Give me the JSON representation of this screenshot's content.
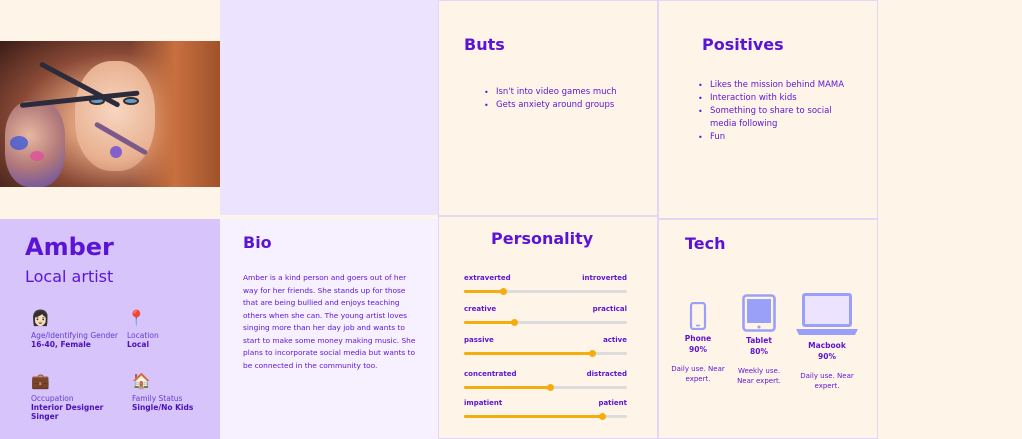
{
  "persona": {
    "name": "Amber",
    "role": "Local artist",
    "facts": [
      {
        "icon": "woman-emoji-icon",
        "emoji": "👩🏻",
        "label": "Age/Identifying Gender",
        "value": "16-40, Female"
      },
      {
        "icon": "pin-icon",
        "emoji": "📍",
        "label": "Location",
        "value": "Local"
      },
      {
        "icon": "briefcase-icon",
        "emoji": "💼",
        "label": "Occupation",
        "value": "Interior Designer",
        "value2": "Singer"
      },
      {
        "icon": "house-icon",
        "emoji": "🏠",
        "label": "Family Status",
        "value": "Single/No Kids"
      }
    ]
  },
  "bio": {
    "title": "Bio",
    "text": "Amber is a kind person and goers out of her way for her friends. She stands up for those that are being bullied and enjoys teaching others when she can. The young artist loves singing more than her day job and wants to start to make some money making music. She plans to incorporate social media but wants to be connected in the community too."
  },
  "buts": {
    "title": "Buts",
    "items": [
      "Isn't into video games much",
      "Gets anxiety around groups"
    ]
  },
  "positives": {
    "title": "Positives",
    "items": [
      "Likes the mission behind MAMA",
      "Interaction with kids",
      "Something to share to social media following",
      "Fun"
    ]
  },
  "personality": {
    "title": "Personality",
    "traits": [
      {
        "left": "extraverted",
        "right": "introverted",
        "value": 0.24
      },
      {
        "left": "creative",
        "right": "practical",
        "value": 0.31
      },
      {
        "left": "passive",
        "right": "active",
        "value": 0.79
      },
      {
        "left": "concentrated",
        "right": "distracted",
        "value": 0.53
      },
      {
        "left": "impatient",
        "right": "patient",
        "value": 0.85
      }
    ],
    "colors": {
      "fill": "#f5ad0e",
      "track": "#dcdcdc"
    }
  },
  "tech": {
    "title": "Tech",
    "devices": [
      {
        "icon": "phone-icon",
        "name": "Phone",
        "percent": "90%",
        "desc": "Daily use. Near expert."
      },
      {
        "icon": "tablet-icon",
        "name": "Tablet",
        "percent": "80%",
        "desc": "Weekly use. Near expert."
      },
      {
        "icon": "laptop-icon",
        "name": "Macbook",
        "percent": "90%",
        "desc": "Daily use. Near expert."
      }
    ],
    "icon_color": "#9aa0f8"
  },
  "colors": {
    "accent": "#5b14d6",
    "profile_bg": "#d6c4fb",
    "page_bg": "#fff4e8"
  }
}
